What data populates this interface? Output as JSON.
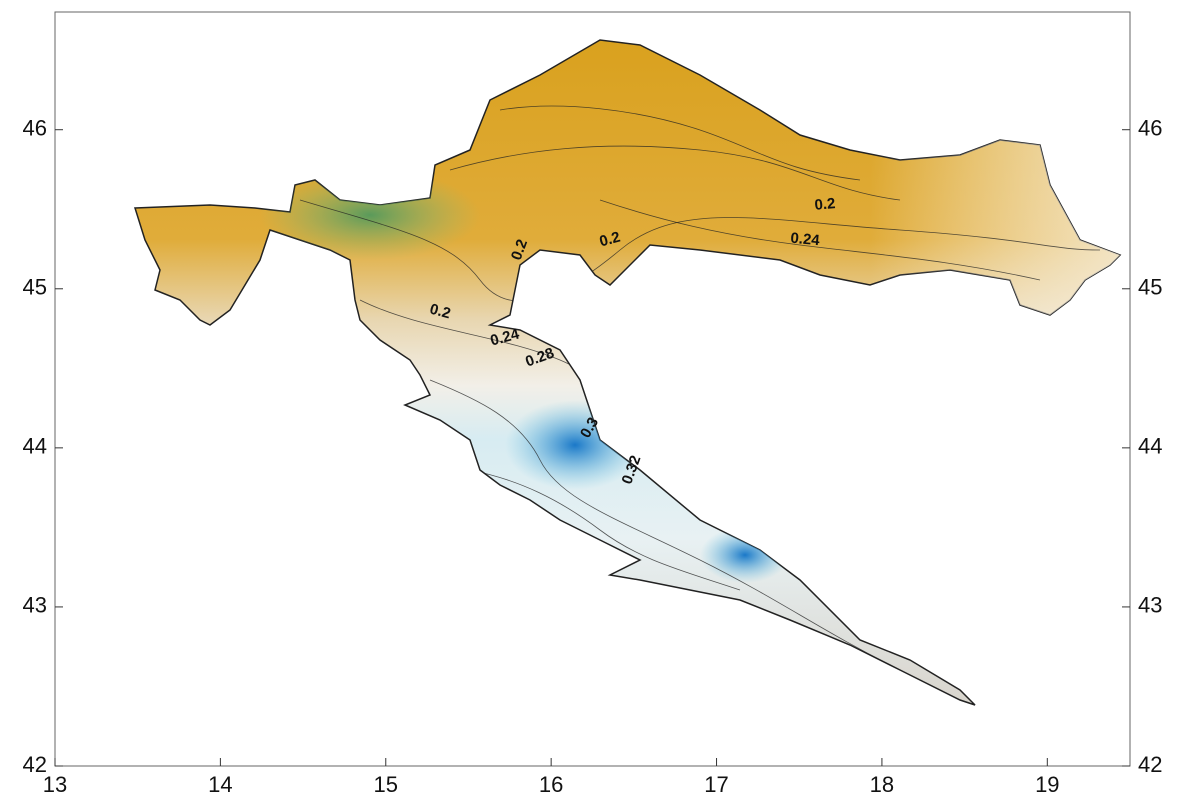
{
  "map": {
    "xlim": [
      13,
      19.5
    ],
    "ylim": [
      42,
      46.74
    ],
    "xticks": [
      13,
      14,
      15,
      16,
      17,
      18,
      19
    ],
    "yticks": [
      42,
      43,
      44,
      45,
      46
    ],
    "contour_labels": [
      "0.2",
      "0.2",
      "0.24",
      "0.2",
      "0.2",
      "0.24",
      "0.28",
      "0.3",
      "0.32"
    ]
  }
}
